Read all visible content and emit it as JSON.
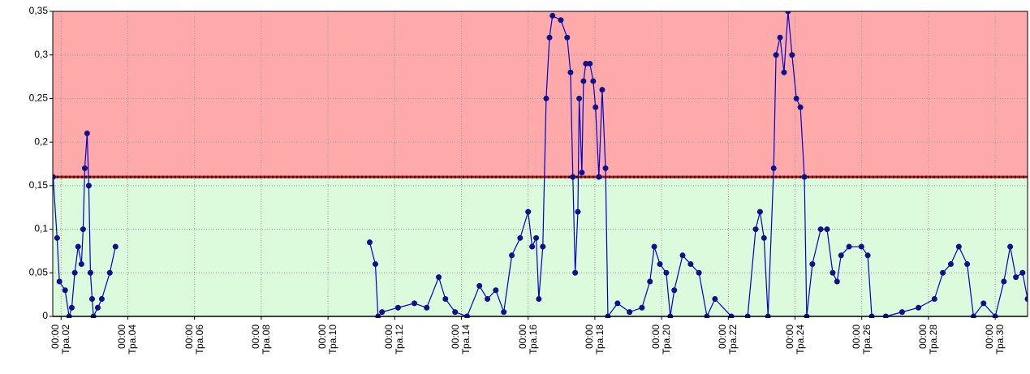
{
  "chart_data": {
    "type": "line",
    "x": [
      1.76,
      1.88,
      1.95,
      2.12,
      2.24,
      2.32,
      2.41,
      2.51,
      2.61,
      2.66,
      2.71,
      2.78,
      2.83,
      2.88,
      2.93,
      2.97,
      3.1,
      3.22,
      3.46,
      3.63,
      10.96,
      11.25,
      11.42,
      11.5,
      11.62,
      12.1,
      12.59,
      12.96,
      13.32,
      13.52,
      13.81,
      14.17,
      14.54,
      14.78,
      15.03,
      15.27,
      15.51,
      15.76,
      16.0,
      16.12,
      16.24,
      16.32,
      16.44,
      16.54,
      16.64,
      16.73,
      16.98,
      17.17,
      17.27,
      17.34,
      17.41,
      17.49,
      17.53,
      17.61,
      17.66,
      17.73,
      17.85,
      17.95,
      18.02,
      18.12,
      18.22,
      18.32,
      18.39,
      18.68,
      19.04,
      19.41,
      19.65,
      19.78,
      19.95,
      20.14,
      20.26,
      20.38,
      20.63,
      20.87,
      21.12,
      21.36,
      21.6,
      22.09,
      22.58,
      22.82,
      22.95,
      23.07,
      23.19,
      23.36,
      23.43,
      23.55,
      23.67,
      23.79,
      23.91,
      24.04,
      24.16,
      24.28,
      24.35,
      24.52,
      24.77,
      24.96,
      25.13,
      25.26,
      25.38,
      25.62,
      25.99,
      26.18,
      26.3,
      26.72,
      27.21,
      27.7,
      28.18,
      28.43,
      28.67,
      28.91,
      29.16,
      29.35,
      29.65,
      30.0,
      30.26,
      30.45,
      30.62,
      30.82,
      30.97
    ],
    "series": [
      {
        "color": "#0000cc",
        "values": [
          0.16,
          0.09,
          0.04,
          0.03,
          0.0,
          0.01,
          0.05,
          0.08,
          0.06,
          0.1,
          0.17,
          0.21,
          0.15,
          0.05,
          0.02,
          0.0,
          0.01,
          0.02,
          0.05,
          0.08,
          null,
          0.085,
          0.06,
          0.0,
          0.005,
          0.01,
          0.015,
          0.01,
          0.045,
          0.02,
          0.005,
          0.0,
          0.035,
          0.02,
          0.03,
          0.005,
          0.07,
          0.09,
          0.12,
          0.08,
          0.09,
          0.02,
          0.08,
          0.25,
          0.32,
          0.345,
          0.34,
          0.32,
          0.28,
          0.16,
          0.05,
          0.12,
          0.25,
          0.165,
          0.27,
          0.29,
          0.29,
          0.27,
          0.24,
          0.16,
          0.26,
          0.17,
          0.0,
          0.015,
          0.005,
          0.01,
          0.04,
          0.08,
          0.06,
          0.05,
          0.0,
          0.03,
          0.07,
          0.06,
          0.05,
          0.0,
          0.02,
          0.0,
          0.0,
          0.1,
          0.12,
          0.09,
          0.0,
          0.17,
          0.3,
          0.32,
          0.28,
          0.35,
          0.3,
          0.25,
          0.24,
          0.16,
          0.0,
          0.06,
          0.1,
          0.1,
          0.05,
          0.04,
          0.07,
          0.08,
          0.08,
          0.07,
          0.0,
          0.0,
          0.005,
          0.01,
          0.02,
          0.05,
          0.06,
          0.08,
          0.06,
          0.0,
          0.015,
          0.0,
          0.04,
          0.08,
          0.045,
          0.05,
          0.02
        ]
      }
    ],
    "threshold": 0.16,
    "above_color": "#ffaaaa",
    "below_color": "#dcfadc",
    "threshold_color": "#dd0000",
    "xlim": [
      1.75,
      30.97
    ],
    "xticks": [
      {
        "value": 2,
        "label": "00:00 Тра.02"
      },
      {
        "value": 4,
        "label": "00:00 Тра.04"
      },
      {
        "value": 6,
        "label": "00:00 Тра.06"
      },
      {
        "value": 8,
        "label": "00:00 Тра.08"
      },
      {
        "value": 10,
        "label": "00:00 Тра.10"
      },
      {
        "value": 12,
        "label": "00:00 Тра.12"
      },
      {
        "value": 14,
        "label": "00:00 Тра.14"
      },
      {
        "value": 16,
        "label": "00:00 Тра.16"
      },
      {
        "value": 18,
        "label": "00:00 Тра.18"
      },
      {
        "value": 20,
        "label": "00:00 Тра.20"
      },
      {
        "value": 22,
        "label": "00:00 Тра.22"
      },
      {
        "value": 24,
        "label": "00:00 Тра.24"
      },
      {
        "value": 26,
        "label": "00:00 Тра.26"
      },
      {
        "value": 28,
        "label": "00:00 Тра.28"
      },
      {
        "value": 30,
        "label": "00:00 Тра.30"
      }
    ],
    "ylim": [
      0,
      0.35
    ],
    "yticks": [
      0,
      {
        "value": 0.05,
        "label": "0,05"
      },
      {
        "value": 0.1,
        "label": "0,1"
      },
      {
        "value": 0.15,
        "label": "0,15"
      },
      {
        "value": 0.2,
        "label": "0,2"
      },
      {
        "value": 0.25,
        "label": "0,25"
      },
      {
        "value": 0.3,
        "label": "0,3"
      },
      {
        "value": 0.35,
        "label": "0,35"
      }
    ],
    "grid": true
  }
}
